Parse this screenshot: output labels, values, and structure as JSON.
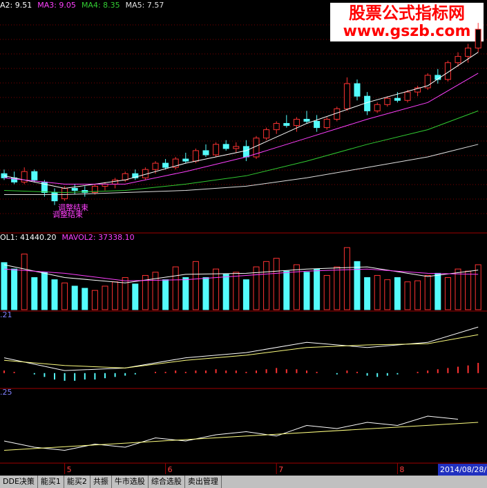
{
  "watermark": {
    "title": "股票公式指标网",
    "url": "www.gszb.com"
  },
  "tabs": [
    "DDE决策",
    "能买1",
    "能买2",
    "共振",
    "牛市选股",
    "综合选股",
    "卖出管理"
  ],
  "cursor_date": "2014/08/28/",
  "xticks": [
    {
      "value": 6,
      "label": "5"
    },
    {
      "value": 16,
      "label": "6"
    },
    {
      "value": 27,
      "label": "7"
    },
    {
      "value": 39,
      "label": "8"
    }
  ],
  "chart_data": [
    {
      "type": "candlestick",
      "ylim": [
        6.0,
        11.2
      ],
      "up_color": "#ff3232",
      "down_color": "#54fcfc",
      "annotations": [
        "调整结束",
        "调整结束"
      ],
      "open": [
        7.3,
        7.2,
        7.1,
        7.35,
        7.1,
        6.85,
        6.7,
        6.95,
        6.9,
        6.85,
        7.0,
        7.05,
        7.15,
        7.3,
        7.2,
        7.4,
        7.55,
        7.45,
        7.65,
        7.6,
        7.85,
        7.75,
        8.0,
        7.9,
        7.95,
        7.7,
        8.15,
        8.35,
        8.5,
        8.45,
        8.6,
        8.55,
        8.4,
        8.6,
        8.85,
        9.45,
        9.15,
        8.8,
        8.95,
        9.1,
        9.05,
        9.25,
        9.35,
        9.65,
        9.55,
        9.95,
        10.1,
        10.3
      ],
      "high": [
        7.4,
        7.35,
        7.45,
        7.4,
        7.15,
        6.95,
        7.0,
        7.05,
        7.0,
        7.05,
        7.1,
        7.2,
        7.35,
        7.4,
        7.45,
        7.6,
        7.65,
        7.7,
        7.8,
        7.9,
        8.0,
        8.05,
        8.1,
        8.05,
        8.1,
        8.2,
        8.4,
        8.55,
        8.7,
        8.65,
        8.8,
        8.7,
        8.65,
        8.9,
        9.6,
        9.55,
        9.25,
        9.0,
        9.15,
        9.25,
        9.3,
        9.4,
        9.7,
        9.8,
        10.0,
        10.2,
        10.4,
        10.9
      ],
      "low": [
        7.15,
        7.05,
        7.05,
        7.1,
        6.75,
        6.55,
        6.65,
        6.8,
        6.75,
        6.8,
        6.9,
        6.95,
        7.1,
        7.15,
        7.15,
        7.3,
        7.4,
        7.4,
        7.55,
        7.55,
        7.7,
        7.7,
        7.85,
        7.8,
        7.6,
        7.65,
        8.1,
        8.25,
        8.4,
        8.3,
        8.5,
        8.3,
        8.35,
        8.55,
        8.8,
        9.05,
        8.7,
        8.75,
        8.9,
        9.0,
        9.0,
        9.15,
        9.3,
        9.45,
        9.5,
        9.85,
        9.95,
        10.2
      ],
      "close": [
        7.2,
        7.1,
        7.35,
        7.15,
        6.85,
        6.65,
        6.95,
        6.9,
        6.85,
        7.0,
        7.05,
        7.15,
        7.3,
        7.2,
        7.4,
        7.55,
        7.45,
        7.65,
        7.6,
        7.85,
        7.75,
        8.0,
        7.9,
        7.95,
        7.7,
        8.15,
        8.35,
        8.5,
        8.45,
        8.6,
        8.55,
        8.4,
        8.6,
        8.85,
        9.45,
        9.15,
        8.8,
        8.95,
        9.1,
        9.05,
        9.25,
        9.35,
        9.65,
        9.55,
        9.95,
        10.1,
        10.3,
        10.75
      ],
      "lines": [
        {
          "name": "A2: 9.51",
          "color": "#ffffff",
          "x": [
            0,
            6,
            12,
            18,
            24,
            30,
            36,
            42,
            47
          ],
          "values": [
            7.25,
            6.95,
            7.15,
            7.55,
            7.85,
            8.5,
            9.0,
            9.4,
            10.2
          ]
        },
        {
          "name": "MA3: 9.05",
          "color": "#ff40ff",
          "x": [
            0,
            6,
            12,
            18,
            24,
            30,
            36,
            42,
            47
          ],
          "values": [
            7.2,
            7.05,
            7.05,
            7.35,
            7.7,
            8.15,
            8.6,
            9.0,
            9.7
          ]
        },
        {
          "name": "MA4: 8.35",
          "color": "#32cd32",
          "x": [
            0,
            6,
            12,
            18,
            24,
            30,
            36,
            42,
            47
          ],
          "values": [
            6.9,
            6.85,
            6.9,
            7.05,
            7.25,
            7.6,
            8.0,
            8.35,
            8.8
          ]
        },
        {
          "name": "MA5: 7.57",
          "color": "#e0e0e0",
          "x": [
            0,
            6,
            12,
            18,
            24,
            30,
            36,
            42,
            47
          ],
          "values": [
            6.8,
            6.8,
            6.85,
            6.9,
            7.0,
            7.2,
            7.45,
            7.7,
            8.0
          ]
        }
      ]
    },
    {
      "type": "volume",
      "ylim": [
        0,
        62000
      ],
      "values": [
        44000,
        38000,
        52000,
        30000,
        35000,
        28000,
        25000,
        22000,
        20000,
        18000,
        22000,
        26000,
        30000,
        24000,
        32000,
        35000,
        28000,
        40000,
        30000,
        45000,
        30000,
        38000,
        33000,
        35000,
        28000,
        40000,
        45000,
        48000,
        36000,
        42000,
        35000,
        38000,
        32000,
        40000,
        58000,
        45000,
        30000,
        32000,
        28000,
        30000,
        26000,
        27000,
        32000,
        34000,
        30000,
        38000,
        36000,
        42000
      ],
      "lines": [
        {
          "name": "OL1: 41440.20",
          "color": "#ffffff",
          "x": [
            0,
            6,
            12,
            18,
            24,
            30,
            36,
            42,
            47
          ],
          "values": [
            42000,
            30000,
            25000,
            33000,
            34000,
            38000,
            40000,
            31000,
            37000
          ]
        },
        {
          "name": "MAVOL2: 37338.10",
          "color": "#ff40ff",
          "x": [
            0,
            6,
            12,
            18,
            24,
            30,
            36,
            42,
            47
          ],
          "values": [
            38000,
            34000,
            27000,
            28000,
            32000,
            36000,
            38000,
            34000,
            33000
          ]
        }
      ]
    },
    {
      "type": "macd",
      "title": ".21",
      "ylim": [
        -0.12,
        0.42
      ],
      "pos_color": "#ff3232",
      "neg_color": "#54fcfc",
      "values": [
        0.02,
        0.01,
        0,
        -0.01,
        -0.03,
        -0.05,
        -0.06,
        -0.06,
        -0.05,
        -0.05,
        -0.04,
        -0.03,
        -0.02,
        -0.01,
        0,
        0.01,
        0.01,
        0.02,
        0.01,
        0.02,
        0.02,
        0.03,
        0.02,
        0.02,
        0.01,
        0.02,
        0.03,
        0.04,
        0.03,
        0.03,
        0.02,
        0.01,
        0,
        -0.01,
        0.02,
        0.01,
        -0.02,
        -0.03,
        -0.02,
        -0.01,
        0,
        0.01,
        0.02,
        0.03,
        0.04,
        0.05,
        0.06,
        0.08
      ],
      "lines": [
        {
          "color": "#ffffff",
          "x": [
            0,
            6,
            12,
            18,
            24,
            30,
            36,
            42,
            47
          ],
          "values": [
            0.12,
            0.02,
            0.04,
            0.12,
            0.16,
            0.24,
            0.2,
            0.24,
            0.36
          ]
        },
        {
          "color": "#ffff80",
          "x": [
            0,
            6,
            12,
            18,
            24,
            30,
            36,
            42,
            47
          ],
          "values": [
            0.1,
            0.06,
            0.04,
            0.1,
            0.14,
            0.2,
            0.22,
            0.23,
            0.3
          ]
        }
      ]
    },
    {
      "type": "line",
      "title": ".25",
      "ylim": [
        0,
        1
      ],
      "lines": [
        {
          "color": "#ffffff",
          "x": [
            0,
            3,
            6,
            9,
            12,
            15,
            18,
            21,
            24,
            27,
            30,
            33,
            36,
            39,
            42,
            45
          ],
          "values": [
            0.3,
            0.2,
            0.15,
            0.25,
            0.2,
            0.35,
            0.3,
            0.4,
            0.45,
            0.38,
            0.55,
            0.5,
            0.6,
            0.55,
            0.7,
            0.65
          ]
        },
        {
          "color": "#ffff80",
          "x": [
            0,
            47
          ],
          "values": [
            0.15,
            0.6
          ]
        }
      ]
    }
  ]
}
